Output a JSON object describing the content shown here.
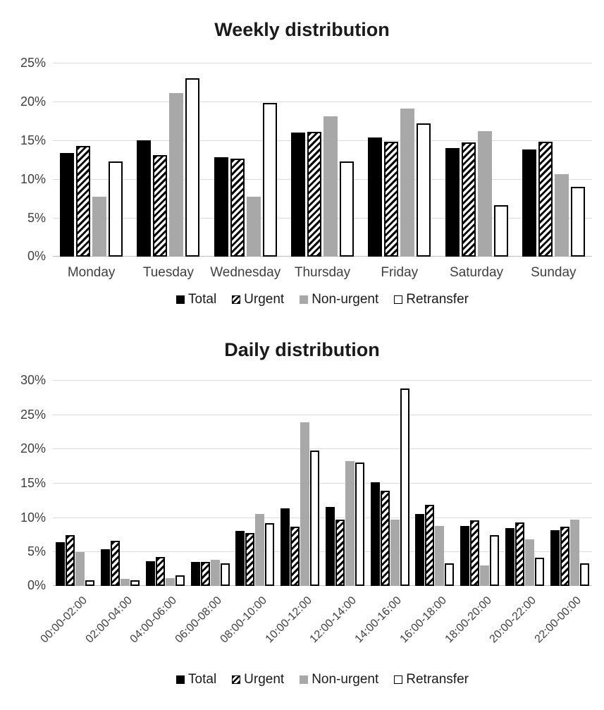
{
  "chart_data": [
    {
      "type": "bar",
      "title": "Weekly distribution",
      "categories": [
        "Monday",
        "Tuesday",
        "Wednesday",
        "Thursday",
        "Friday",
        "Saturday",
        "Sunday"
      ],
      "series": [
        {
          "name": "Total",
          "style": "total",
          "values": [
            13.4,
            15.0,
            12.8,
            16.0,
            15.4,
            14.0,
            13.8
          ]
        },
        {
          "name": "Urgent",
          "style": "urgent",
          "values": [
            14.3,
            13.1,
            12.6,
            16.1,
            14.8,
            14.7,
            14.8
          ]
        },
        {
          "name": "Non-urgent",
          "style": "nonurgent",
          "values": [
            7.7,
            21.1,
            7.7,
            18.1,
            19.1,
            16.2,
            10.6
          ]
        },
        {
          "name": "Retransfer",
          "style": "retransfer",
          "values": [
            12.3,
            23.0,
            19.8,
            12.3,
            17.2,
            6.6,
            9.0
          ]
        }
      ],
      "xlabel": "",
      "ylabel": "",
      "ylim": [
        0,
        25
      ],
      "ytick_labels": [
        "0%",
        "5%",
        "10%",
        "15%",
        "20%",
        "25%"
      ],
      "grid": true,
      "legend_position": "bottom",
      "x_label_rotation": 0
    },
    {
      "type": "bar",
      "title": "Daily distribution",
      "categories": [
        "00:00-02:00",
        "02:00-04:00",
        "04:00-06:00",
        "06:00-08:00",
        "08:00-10:00",
        "10:00-12:00",
        "12:00-14:00",
        "14:00-16:00",
        "16:00-18:00",
        "18:00-20:00",
        "20:00-22:00",
        "22:00-00:00"
      ],
      "series": [
        {
          "name": "Total",
          "style": "total",
          "values": [
            6.4,
            5.3,
            3.6,
            3.5,
            8.0,
            11.3,
            11.5,
            15.1,
            10.5,
            8.7,
            8.4,
            8.1
          ]
        },
        {
          "name": "Urgent",
          "style": "urgent",
          "values": [
            7.4,
            6.6,
            4.2,
            3.5,
            7.7,
            8.6,
            9.7,
            13.9,
            11.8,
            9.6,
            9.3,
            8.6
          ]
        },
        {
          "name": "Non-urgent",
          "style": "nonurgent",
          "values": [
            4.9,
            1.0,
            1.1,
            3.8,
            10.5,
            23.8,
            18.2,
            9.7,
            8.7,
            3.0,
            6.8,
            9.7
          ]
        },
        {
          "name": "Retransfer",
          "style": "retransfer",
          "values": [
            0.8,
            0.8,
            1.5,
            3.3,
            9.1,
            19.7,
            18.0,
            28.8,
            3.3,
            7.4,
            4.1,
            3.3
          ]
        }
      ],
      "xlabel": "",
      "ylabel": "",
      "ylim": [
        0,
        30
      ],
      "ytick_labels": [
        "0%",
        "5%",
        "10%",
        "15%",
        "20%",
        "25%",
        "30%"
      ],
      "grid": true,
      "legend_position": "bottom",
      "x_label_rotation": -45
    }
  ],
  "colors": {
    "total": "#000000",
    "urgent_stripe": "#000000",
    "urgent_bg": "#ffffff",
    "nonurgent": "#a8a8a8",
    "retransfer_bg": "#ffffff",
    "bar_border": "#000000",
    "gridline": "#d9d9d9",
    "axis_line": "#bdbdbd",
    "label_text": "#404040",
    "title_text": "#1a1a1a"
  }
}
